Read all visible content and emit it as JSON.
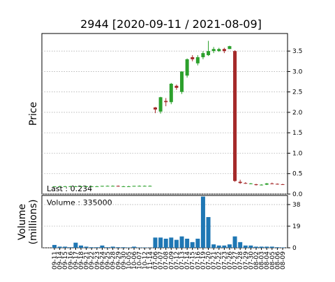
{
  "chart_data": {
    "type": "candlestick",
    "title": "2944   [2020-09-11 / 2021-08-09]",
    "ylabel": "Price",
    "volume_ylabel": [
      "Volume",
      "(millions)"
    ],
    "annotations": [
      "Last : 0.234",
      "Volume : 335000"
    ],
    "categories": [
      "09-11",
      "09-14",
      "09-15",
      "09-16",
      "09-17",
      "09-18",
      "09-21",
      "09-22",
      "09-23",
      "09-24",
      "09-25",
      "09-28",
      "09-29",
      "09-30",
      "10-05",
      "10-06",
      "10-07",
      "10-12",
      "11-14",
      "07-06",
      "07-07",
      "07-08",
      "07-09",
      "07-12",
      "07-13",
      "07-14",
      "07-15",
      "07-16",
      "07-19",
      "07-20",
      "07-21",
      "07-22",
      "07-23",
      "07-26",
      "07-27",
      "07-28",
      "07-29",
      "07-30",
      "08-02",
      "08-03",
      "08-04",
      "08-05",
      "08-06",
      "08-09"
    ],
    "open": [
      0.18,
      0.19,
      0.19,
      0.19,
      0.19,
      0.19,
      0.19,
      0.19,
      0.19,
      0.19,
      0.2,
      0.2,
      0.2,
      0.19,
      0.19,
      0.19,
      0.2,
      0.2,
      0.2,
      2.12,
      2.02,
      2.28,
      2.25,
      2.65,
      2.5,
      2.9,
      3.35,
      3.2,
      3.35,
      3.4,
      3.5,
      3.5,
      3.55,
      3.55,
      3.5,
      0.3,
      0.27,
      0.25,
      0.24,
      0.22,
      0.23,
      0.26,
      0.25,
      0.24
    ],
    "high": [
      0.19,
      0.2,
      0.2,
      0.2,
      0.2,
      0.2,
      0.2,
      0.2,
      0.2,
      0.2,
      0.21,
      0.21,
      0.21,
      0.2,
      0.2,
      0.2,
      0.21,
      0.21,
      0.21,
      2.13,
      2.38,
      2.35,
      2.72,
      2.68,
      3.0,
      3.32,
      3.4,
      3.4,
      3.5,
      3.75,
      3.6,
      3.58,
      3.58,
      3.63,
      3.52,
      0.35,
      0.29,
      0.27,
      0.25,
      0.24,
      0.27,
      0.28,
      0.26,
      0.25
    ],
    "low": [
      0.18,
      0.18,
      0.18,
      0.18,
      0.18,
      0.18,
      0.18,
      0.18,
      0.18,
      0.18,
      0.19,
      0.19,
      0.18,
      0.18,
      0.18,
      0.18,
      0.19,
      0.19,
      0.19,
      1.98,
      1.97,
      2.15,
      2.2,
      2.55,
      2.45,
      2.85,
      3.25,
      3.15,
      3.3,
      3.38,
      3.45,
      3.48,
      3.45,
      3.55,
      0.3,
      0.25,
      0.25,
      0.24,
      0.21,
      0.21,
      0.22,
      0.24,
      0.23,
      0.23
    ],
    "close": [
      0.19,
      0.19,
      0.19,
      0.19,
      0.19,
      0.19,
      0.19,
      0.19,
      0.19,
      0.2,
      0.2,
      0.2,
      0.19,
      0.19,
      0.19,
      0.2,
      0.2,
      0.2,
      0.2,
      2.07,
      2.37,
      2.25,
      2.7,
      2.6,
      3.0,
      3.3,
      3.3,
      3.35,
      3.45,
      3.5,
      3.55,
      3.55,
      3.5,
      3.62,
      0.32,
      0.27,
      0.26,
      0.26,
      0.22,
      0.23,
      0.26,
      0.25,
      0.24,
      0.234
    ],
    "volume": [
      2.5,
      1,
      1,
      0.5,
      4.5,
      2,
      1,
      0.5,
      0.5,
      2,
      0.5,
      1,
      0.5,
      0.5,
      0.3,
      1,
      0.3,
      0.3,
      0.2,
      9,
      9,
      8,
      9,
      7,
      10,
      8,
      5,
      8,
      45,
      27,
      3,
      2,
      2,
      3,
      10,
      5,
      2,
      2,
      1,
      1,
      1,
      1,
      0.5,
      0.335
    ],
    "up_color": "#2ca02c",
    "down_color": "#a52a2a",
    "volume_color": "#1f77b4",
    "ylim": [
      0,
      3.93
    ],
    "yticks": [
      {
        "value": 0,
        "label": "0.0"
      },
      0.5,
      {
        "value": 1,
        "label": "1.0"
      },
      1.5,
      {
        "value": 2,
        "label": "2.0"
      },
      2.5,
      {
        "value": 3,
        "label": "3.0"
      },
      3.5
    ],
    "volume_ylim": [
      0,
      46
    ],
    "volume_yticks": [
      0,
      19,
      38
    ],
    "grid": true
  }
}
